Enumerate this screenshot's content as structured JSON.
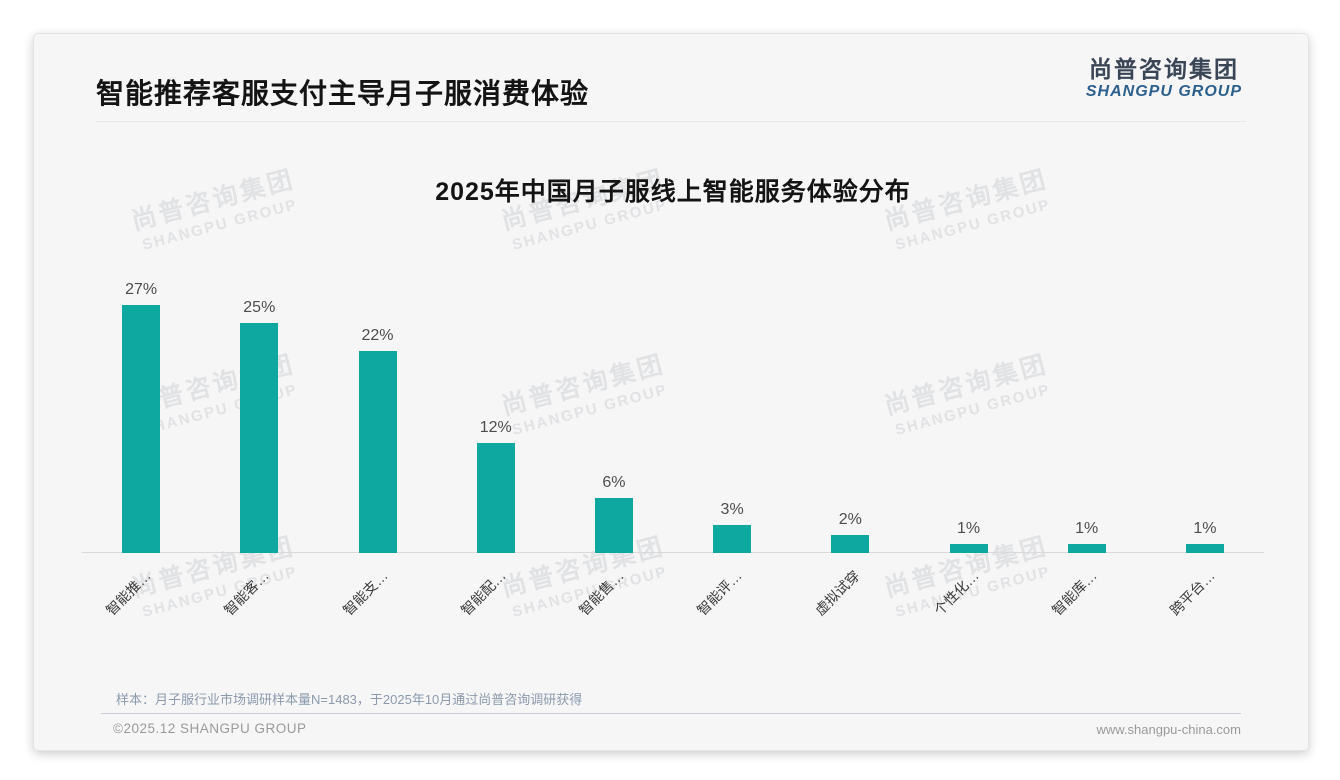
{
  "page": {
    "title": "智能推荐客服支付主导月子服消费体验",
    "logo": {
      "cn": "尚普咨询集团",
      "en": "SHANGPU GROUP",
      "cn_color": "#3a4656",
      "en_color": "#2b5f8c"
    },
    "watermark": {
      "cn": "尚普咨询集团",
      "en": "SHANGPU GROUP"
    },
    "source_note": "样本：月子服行业市场调研样本量N=1483，于2025年10月通过尚普咨询调研获得",
    "footer": {
      "copyright": "©2025.12 SHANGPU GROUP",
      "website": "www.shangpu-china.com"
    }
  },
  "chart_data": {
    "type": "bar",
    "title": "2025年中国月子服线上智能服务体验分布",
    "categories": [
      "智能推…",
      "智能客…",
      "智能支…",
      "智能配…",
      "智能售…",
      "智能评…",
      "虚拟试穿",
      "个性化…",
      "智能库…",
      "跨平台…"
    ],
    "values": [
      27,
      25,
      22,
      12,
      6,
      3,
      2,
      1,
      1,
      1
    ],
    "value_labels": [
      "27%",
      "25%",
      "22%",
      "12%",
      "6%",
      "3%",
      "2%",
      "1%",
      "1%",
      "1%"
    ],
    "unit": "%",
    "xlabel": "",
    "ylabel": "",
    "ylim": [
      0,
      30
    ],
    "grid": false,
    "legend": false,
    "y_axis_visible": false,
    "bar_color": "#0fa8a1",
    "axis_line_color": "#d9d9d9"
  }
}
